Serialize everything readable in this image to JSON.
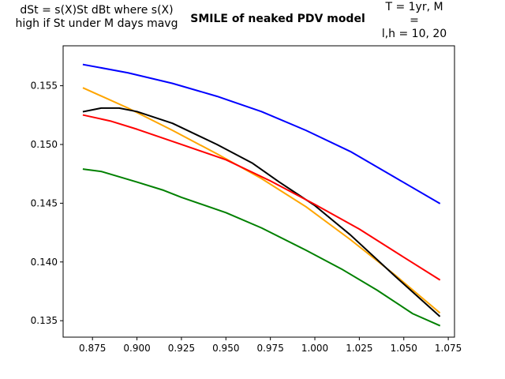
{
  "titles": {
    "left": "dSt = s(X)St dBt where s(X)\nhigh if St under M days mavg",
    "center": "SMILE of neaked PDV model",
    "right": "T = 1yr, M\n=\nl,h = 10, 20"
  },
  "chart_data": {
    "type": "line",
    "title": "SMILE of neaked PDV model",
    "xlabel": "",
    "ylabel": "",
    "xlim": [
      0.8585,
      1.0785
    ],
    "ylim": [
      0.1336,
      0.1584
    ],
    "xticks": [
      0.875,
      0.9,
      0.925,
      0.95,
      0.975,
      1.0,
      1.025,
      1.05,
      1.075
    ],
    "yticks": [
      0.135,
      0.14,
      0.145,
      0.15,
      0.155
    ],
    "grid": false,
    "legend": "none",
    "series": [
      {
        "color": "#0000ff",
        "x": [
          0.87,
          0.895,
          0.92,
          0.945,
          0.97,
          0.995,
          1.02,
          1.045,
          1.07
        ],
        "y": [
          0.1568,
          0.1561,
          0.1552,
          0.1541,
          0.1528,
          0.1512,
          0.1494,
          0.1472,
          0.145
        ]
      },
      {
        "color": "#ffa500",
        "x": [
          0.87,
          0.895,
          0.92,
          0.945,
          0.97,
          0.995,
          1.02,
          1.045,
          1.07
        ],
        "y": [
          0.1548,
          0.1531,
          0.1512,
          0.1492,
          0.1471,
          0.1447,
          0.1419,
          0.1389,
          0.1357
        ]
      },
      {
        "color": "#000000",
        "x": [
          0.87,
          0.88,
          0.89,
          0.9,
          0.92,
          0.945,
          0.965,
          0.98,
          1.0,
          1.02,
          1.045,
          1.07
        ],
        "y": [
          0.1528,
          0.1531,
          0.1531,
          0.1528,
          0.1518,
          0.15,
          0.1484,
          0.1468,
          0.1448,
          0.1423,
          0.1388,
          0.1354
        ]
      },
      {
        "color": "#ff0000",
        "x": [
          0.87,
          0.885,
          0.9,
          0.925,
          0.95,
          0.975,
          1.0,
          1.025,
          1.05,
          1.07
        ],
        "y": [
          0.1525,
          0.152,
          0.1513,
          0.15,
          0.1487,
          0.1469,
          0.1449,
          0.1428,
          0.1404,
          0.1385
        ]
      },
      {
        "color": "#008000",
        "x": [
          0.87,
          0.88,
          0.9,
          0.915,
          0.925,
          0.95,
          0.97,
          0.995,
          1.015,
          1.035,
          1.055,
          1.07
        ],
        "y": [
          0.1479,
          0.1477,
          0.1468,
          0.1461,
          0.1455,
          0.1442,
          0.1429,
          0.141,
          0.1394,
          0.1376,
          0.1356,
          0.1346
        ]
      }
    ]
  }
}
